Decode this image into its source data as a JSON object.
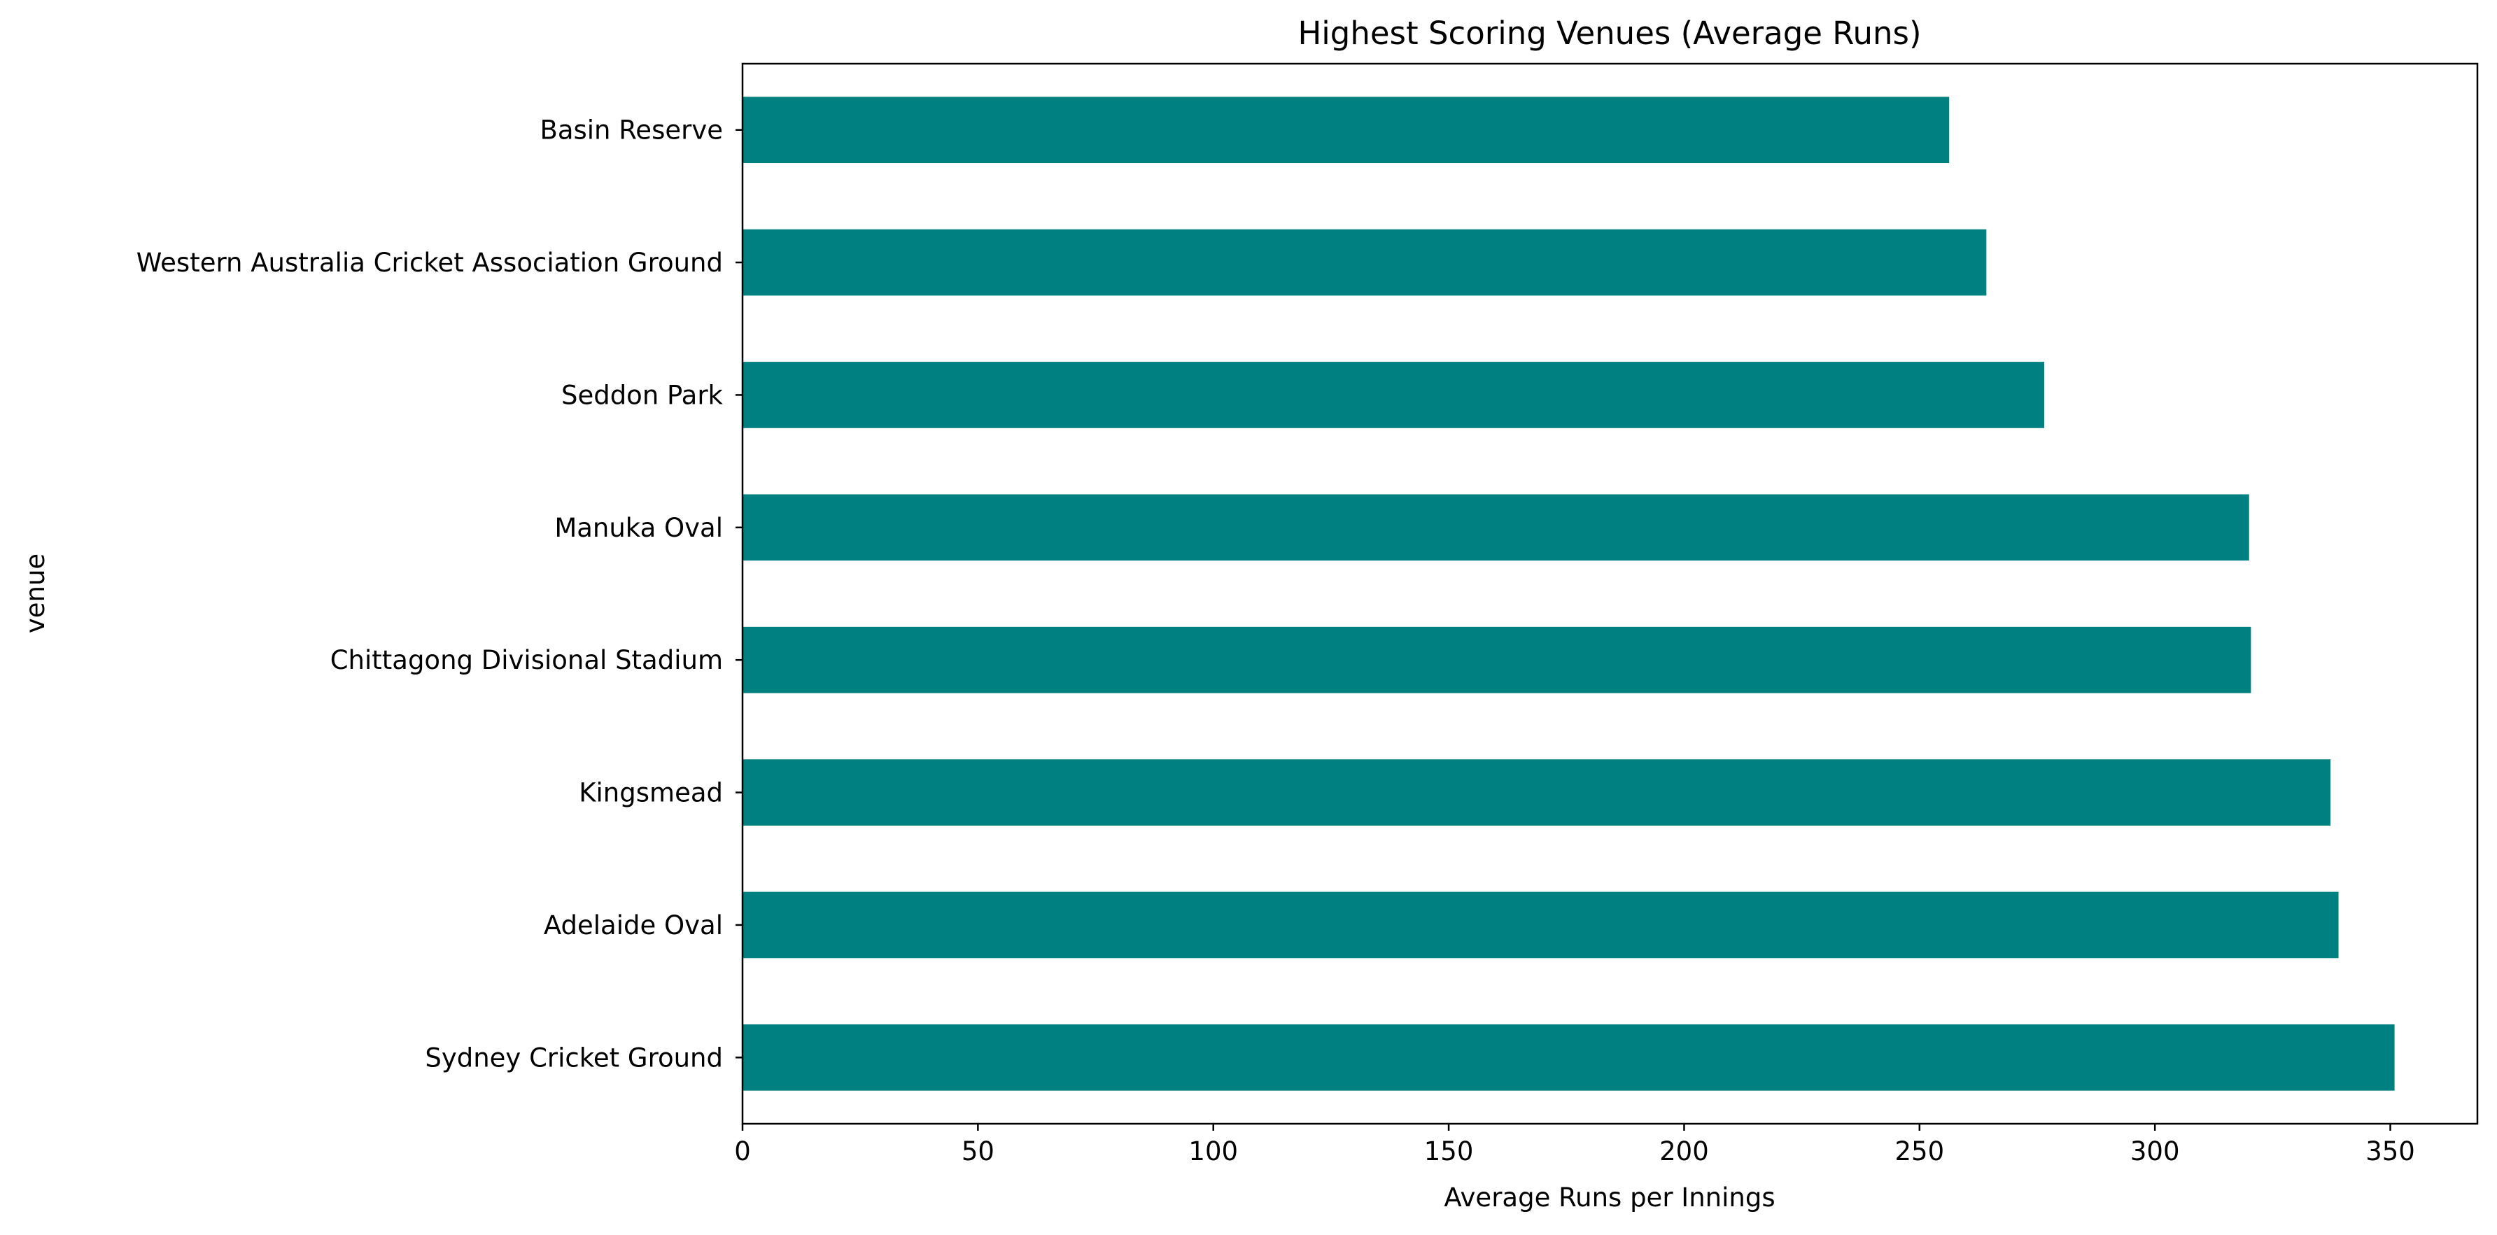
{
  "chart_data": {
    "type": "bar",
    "orientation": "horizontal",
    "title": "Highest Scoring Venues (Average Runs)",
    "xlabel": "Average Runs per Innings",
    "ylabel": "venue",
    "xlim": [
      0,
      368.5
    ],
    "xticks": [
      0,
      50,
      100,
      150,
      200,
      250,
      300,
      350
    ],
    "grid": false,
    "bar_color": "#008080",
    "categories": [
      "Sydney Cricket Ground",
      "Adelaide Oval",
      "Kingsmead",
      "Chittagong Divisional Stadium",
      "Manuka Oval",
      "Seddon Park",
      "Western Australia Cricket Association Ground",
      "Basin Reserve"
    ],
    "values": [
      350.9,
      339.0,
      337.3,
      320.4,
      320.0,
      276.5,
      264.2,
      256.3
    ]
  }
}
